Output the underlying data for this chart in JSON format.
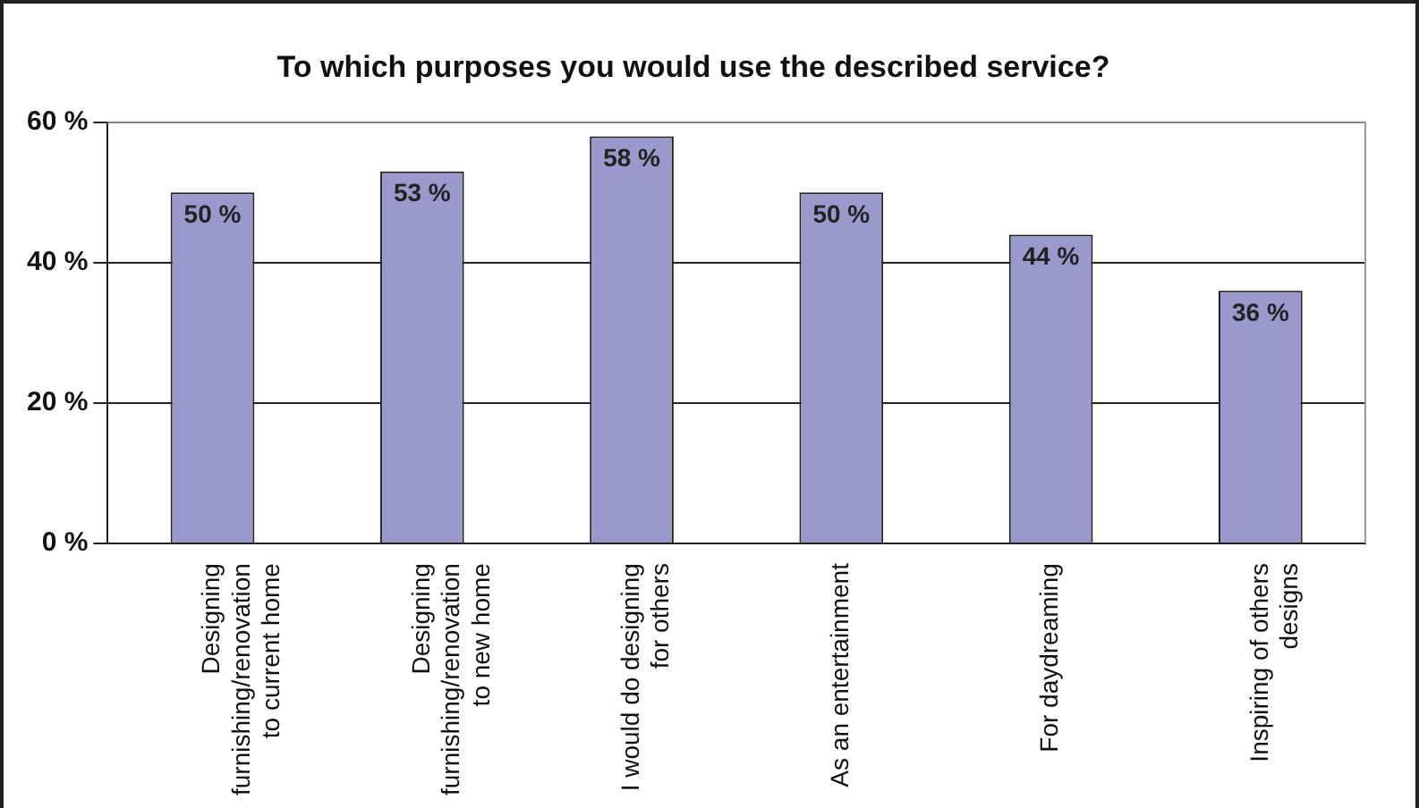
{
  "chart_data": {
    "type": "bar",
    "title": "To which purposes you would use the described service?",
    "categories": [
      "Designing furnishing/renovation to current home",
      "Designing furnishing/renovation to new home",
      "I would do designing for others",
      "As an entertainment",
      "For daydreaming",
      "Inspiring of others designs"
    ],
    "values": [
      50,
      53,
      58,
      50,
      44,
      36
    ],
    "value_labels": [
      "50 %",
      "53 %",
      "58 %",
      "50 %",
      "44 %",
      "36 %"
    ],
    "color": "#9999cc",
    "ylim": [
      0,
      60
    ],
    "yticks": [
      {
        "value": 0,
        "label": "0 %"
      },
      {
        "value": 20,
        "label": "20 %"
      },
      {
        "value": 40,
        "label": "40 %"
      },
      {
        "value": 60,
        "label": "60 %"
      }
    ],
    "grid": "y",
    "legend": false
  }
}
